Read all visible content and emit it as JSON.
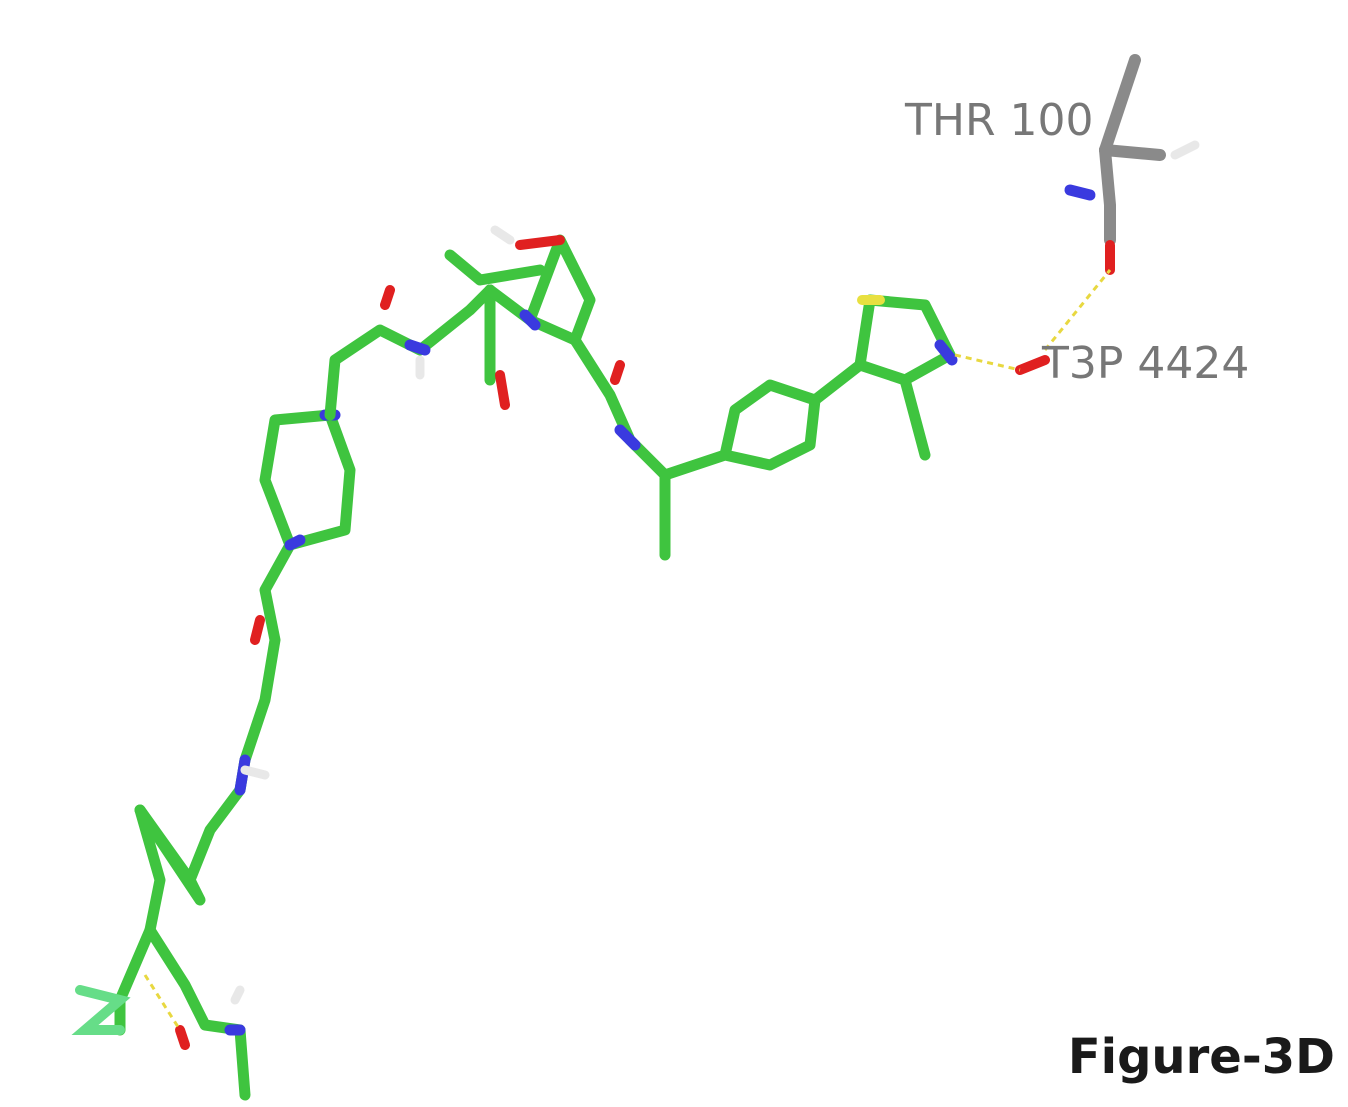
{
  "residue_label": "THR 100",
  "ligand_label": "T3P 4424",
  "figure_label": "Figure-3D"
}
